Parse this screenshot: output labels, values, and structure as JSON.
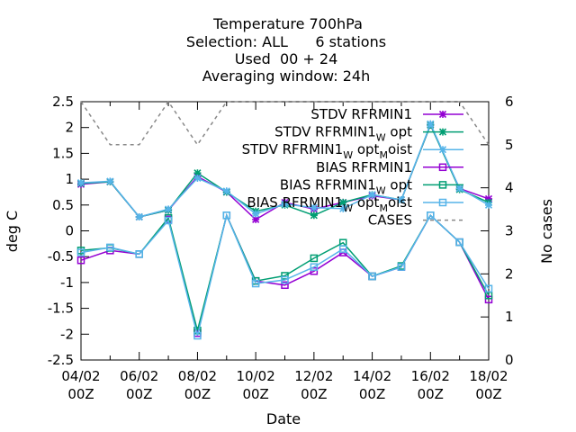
{
  "chart_data": {
    "type": "line",
    "title_lines": [
      "Temperature 700hPa",
      "Selection: ALL      6 stations",
      "Used  00 + 24",
      "Averaging window: 24h"
    ],
    "xlabel": "Date",
    "ylabel": "deg C",
    "y2label": "No cases",
    "x": [
      "04/02 00Z",
      "05/02 00Z",
      "06/02 00Z",
      "07/02 00Z",
      "08/02 00Z",
      "09/02 00Z",
      "10/02 00Z",
      "11/02 00Z",
      "12/02 00Z",
      "13/02 00Z",
      "14/02 00Z",
      "15/02 00Z",
      "16/02 00Z",
      "17/02 00Z",
      "18/02 00Z"
    ],
    "x_tick_labels": [
      [
        "04/02",
        "00Z"
      ],
      [
        "06/02",
        "00Z"
      ],
      [
        "08/02",
        "00Z"
      ],
      [
        "10/02",
        "00Z"
      ],
      [
        "12/02",
        "00Z"
      ],
      [
        "14/02",
        "00Z"
      ],
      [
        "16/02",
        "00Z"
      ],
      [
        "18/02",
        "00Z"
      ]
    ],
    "ylim": [
      -2.5,
      2.5
    ],
    "y_ticks": [
      "2.5",
      "2",
      "1.5",
      "1",
      "0.5",
      "0",
      "-0.5",
      "-1",
      "-1.5",
      "-2",
      "-2.5"
    ],
    "y2lim": [
      0,
      6
    ],
    "y2_ticks": [
      "6",
      "5",
      "4",
      "3",
      "2",
      "1",
      "0"
    ],
    "legend_position": "top-right",
    "series": [
      {
        "name": "STDV RFRMIN1",
        "sub": "",
        "sub2": "",
        "axis": "y1",
        "color": "#9400d3",
        "marker": "star",
        "dash": false,
        "values": [
          0.9,
          0.95,
          0.27,
          0.4,
          1.05,
          0.75,
          0.22,
          0.55,
          0.42,
          0.55,
          0.68,
          0.6,
          2.05,
          0.82,
          0.62
        ]
      },
      {
        "name": "STDV RFRMIN1",
        "sub": "W",
        "sub2": "",
        "tail": " opt",
        "axis": "y1",
        "color": "#009e73",
        "marker": "star",
        "dash": false,
        "values": [
          0.92,
          0.95,
          0.27,
          0.4,
          1.12,
          0.75,
          0.38,
          0.5,
          0.3,
          0.55,
          0.7,
          0.6,
          2.05,
          0.8,
          0.55
        ]
      },
      {
        "name": "STDV RFRMIN1",
        "sub": "W",
        "sub2": "M",
        "tail": " opt",
        "tail2": "oist",
        "axis": "y1",
        "color": "#56b4e9",
        "marker": "star",
        "dash": false,
        "values": [
          0.93,
          0.96,
          0.27,
          0.42,
          1.02,
          0.77,
          0.33,
          0.52,
          0.45,
          0.43,
          0.7,
          0.6,
          2.07,
          0.82,
          0.5
        ]
      },
      {
        "name": "BIAS RFRMIN1",
        "sub": "",
        "sub2": "",
        "axis": "y1",
        "color": "#9400d3",
        "marker": "square",
        "dash": false,
        "values": [
          -0.57,
          -0.38,
          -0.45,
          0.22,
          -1.98,
          0.3,
          -0.97,
          -1.05,
          -0.78,
          -0.42,
          -0.88,
          -0.7,
          0.3,
          -0.22,
          -1.33
        ]
      },
      {
        "name": "BIAS RFRMIN1",
        "sub": "W",
        "sub2": "",
        "tail": " opt",
        "axis": "y1",
        "color": "#009e73",
        "marker": "square",
        "dash": false,
        "values": [
          -0.38,
          -0.33,
          -0.45,
          0.25,
          -1.93,
          0.3,
          -0.97,
          -0.87,
          -0.53,
          -0.23,
          -0.88,
          -0.68,
          0.3,
          -0.22,
          -1.25
        ]
      },
      {
        "name": "BIAS RFRMIN1",
        "sub": "W",
        "sub2": "M",
        "tail": " opt",
        "tail2": "oist",
        "axis": "y1",
        "color": "#56b4e9",
        "marker": "square",
        "dash": false,
        "values": [
          -0.42,
          -0.32,
          -0.45,
          0.2,
          -2.03,
          0.3,
          -1.02,
          -0.95,
          -0.7,
          -0.35,
          -0.88,
          -0.7,
          0.3,
          -0.22,
          -1.12
        ]
      },
      {
        "name": "CASES",
        "sub": "",
        "sub2": "",
        "axis": "y2",
        "color": "#888888",
        "marker": "none",
        "dash": true,
        "values": [
          6,
          5,
          5,
          6,
          5,
          6,
          6,
          6,
          6,
          6,
          6,
          6,
          6,
          6,
          5
        ]
      }
    ]
  }
}
